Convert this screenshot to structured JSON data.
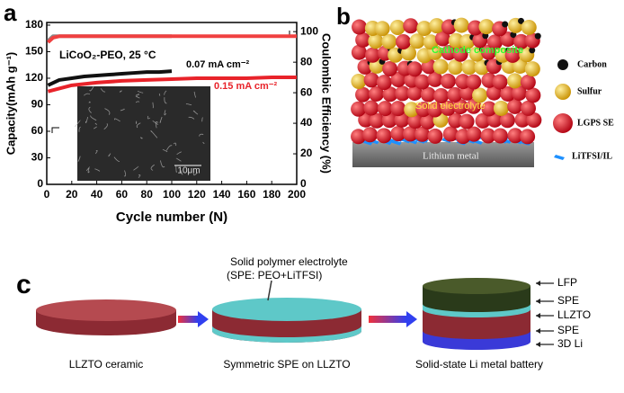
{
  "chart_data": {
    "type": "line",
    "panel_label": "a",
    "xlabel": "Cycle number (N)",
    "ylabel": "Capacity(mAh g⁻¹)",
    "y2label": "Coulombic Efficiency (%)",
    "annotations": [
      "LiCoO₂-PEO, 25 °C",
      "0.07 mA cm⁻²",
      "0.15 mA cm⁻²",
      "10μm"
    ],
    "xlim": [
      0,
      200
    ],
    "xticks": [
      0,
      20,
      40,
      60,
      80,
      100,
      120,
      140,
      160,
      180,
      200
    ],
    "ylim": [
      0,
      183
    ],
    "yticks": [
      0,
      30,
      60,
      90,
      120,
      150,
      180
    ],
    "y2lim": [
      0,
      106
    ],
    "y2ticks": [
      0,
      20,
      40,
      60,
      80,
      100
    ],
    "series": [
      {
        "name": "0.07 mA cm⁻²",
        "color": "#111111",
        "x": [
          1,
          10,
          20,
          30,
          40,
          50,
          60,
          70,
          80,
          90,
          100
        ],
        "values": [
          112,
          118,
          120,
          122,
          123,
          124,
          125,
          126,
          127,
          127,
          128
        ]
      },
      {
        "name": "0.15 mA cm⁻²",
        "color": "#e8232a",
        "x": [
          1,
          20,
          40,
          60,
          80,
          100,
          120,
          140,
          160,
          180,
          200
        ],
        "values": [
          105,
          112,
          115,
          117,
          118,
          119,
          120,
          120,
          120,
          121,
          121
        ]
      },
      {
        "name": "0.07 mA cm⁻² CE",
        "color": "#8a8a8a",
        "axis": "y2",
        "x": [
          1,
          5,
          10,
          20,
          40,
          60,
          80,
          100
        ],
        "values": [
          94,
          97,
          97,
          97,
          97,
          97,
          97,
          97
        ]
      },
      {
        "name": "0.15 mA cm⁻² CE",
        "color": "#f04040",
        "axis": "y2",
        "x": [
          1,
          5,
          10,
          50,
          100,
          150,
          200
        ],
        "values": [
          93,
          96,
          97,
          97,
          97,
          97,
          97
        ]
      }
    ]
  },
  "panel_b": {
    "label": "b",
    "layers": [
      "Cathode composite",
      "Solid electrolyte",
      "Lithium metal"
    ],
    "legend": [
      "Carbon",
      "Sulfur",
      "LGPS SE",
      "LiTFSI/IL"
    ]
  },
  "panel_c": {
    "label": "c",
    "callout": [
      "Solid polymer electrolyte",
      "(SPE: PEO+LiTFSI)"
    ],
    "captions": [
      "LLZTO ceramic",
      "Symmetric SPE on LLZTO",
      "Solid-state Li metal battery"
    ],
    "layers": [
      "LFP",
      "SPE",
      "LLZTO",
      "SPE",
      "3D Li"
    ]
  }
}
